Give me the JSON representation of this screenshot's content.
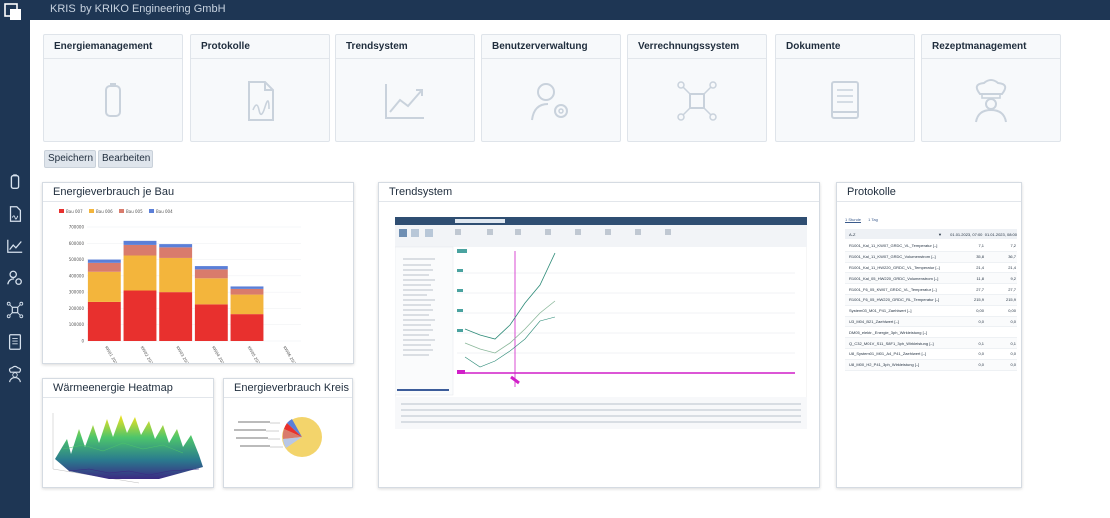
{
  "header": {
    "app_name": "KRIS",
    "company": "by KRIKO Engineering GmbH"
  },
  "sidebar": {
    "icons": [
      "battery-icon",
      "document-icon",
      "trend-icon",
      "user-gear-icon",
      "network-icon",
      "book-icon",
      "chef-icon"
    ]
  },
  "tiles": [
    {
      "label": "Energiemanagement",
      "icon": "battery-icon"
    },
    {
      "label": "Protokolle",
      "icon": "document-icon"
    },
    {
      "label": "Trendsystem",
      "icon": "trend-icon"
    },
    {
      "label": "Benutzerverwaltung",
      "icon": "user-gear-icon"
    },
    {
      "label": "Verrechnungssystem",
      "icon": "network-icon"
    },
    {
      "label": "Dokumente",
      "icon": "book-icon"
    },
    {
      "label": "Rezeptmanagement",
      "icon": "chef-icon"
    }
  ],
  "buttons": {
    "save": "Speichern",
    "edit": "Bearbeiten"
  },
  "panels": {
    "energy_bar": "Energieverbrauch je Bau",
    "heatmap": "Wärmeenergie Heatmap",
    "pie": "Energieverbrauch Kreis",
    "trend": "Trendsystem",
    "protocols": "Protokolle"
  },
  "colors": {
    "bau007": "#e8302e",
    "bau006": "#f3b53c",
    "bau005": "#d97b6c",
    "bau004": "#5b7fd8"
  },
  "chart_data": [
    {
      "type": "bar",
      "title": "Energieverbrauch je Bau",
      "legend": [
        "Bau 007",
        "Bau 006",
        "Bau 005",
        "Bau 004"
      ],
      "categories": [
        "KW01 2024",
        "KW02 2024",
        "KW03 2024",
        "KW04 2024",
        "KW05 2024",
        "KW06 2024"
      ],
      "series": [
        {
          "name": "Bau 007",
          "values": [
            240000,
            310000,
            300000,
            225000,
            165000,
            0
          ]
        },
        {
          "name": "Bau 006",
          "values": [
            185000,
            215000,
            210000,
            160000,
            120000,
            0
          ]
        },
        {
          "name": "Bau 005",
          "values": [
            55000,
            65000,
            65000,
            55000,
            35000,
            0
          ]
        },
        {
          "name": "Bau 004",
          "values": [
            20000,
            25000,
            20000,
            20000,
            15000,
            0
          ]
        }
      ],
      "yticks": [
        "0",
        "100000",
        "200000",
        "300000",
        "400000",
        "500000",
        "600000",
        "700000"
      ],
      "ylim": [
        0,
        700000
      ],
      "legend_position": "top-left"
    }
  ],
  "protocols": {
    "tabs": [
      "1 Stunde",
      "1 Tag"
    ],
    "column_header": "A-Z",
    "dates": [
      "01.01.2023, 07:00",
      "01.01.2023, 08:00"
    ],
    "rows": [
      {
        "name": "R1001_Kal_11_KW07_GRDC_VL_Temperatur [–]",
        "v1": "7,1",
        "v2": "7,2"
      },
      {
        "name": "R1001_Kal_11_KW07_GRDC_Volumenstrom [–]",
        "v1": "35,8",
        "v2": "36,7"
      },
      {
        "name": "R1001_Kal_11_HW220_GRDC_VL_Temperatur [–]",
        "v1": "21,4",
        "v2": "21,4"
      },
      {
        "name": "R1001_Kal_05_HW220_GRDC_Volumenstrom [–]",
        "v1": "11,8",
        "v2": "9,2"
      },
      {
        "name": "R1001_F6_05_KW07_GRDC_VL_Temperatur [–]",
        "v1": "27,7",
        "v2": "27,7"
      },
      {
        "name": "R1001_F6_05_HW220_GRDC_RL_Temperatur [–]",
        "v1": "215,9",
        "v2": "215,9"
      },
      {
        "name": "System03_M01_P41_Zaehlwert [–]",
        "v1": "0,00",
        "v2": "0,00"
      },
      {
        "name": "U3_M04_B21_Zaehlwert [–]",
        "v1": "0,0",
        "v2": "0,0"
      },
      {
        "name": "DM05_elektr._Energie_3ph_Wirkleistung [–]",
        "v1": "",
        "v2": ""
      },
      {
        "name": "Q_C32_M01V_S11_S8F1_3ph_Wirkleistung [–]",
        "v1": "0,1",
        "v2": "0,1"
      },
      {
        "name": "U8_System01_M01_A4_P41_Zaehlwert [–]",
        "v1": "0,0",
        "v2": "0,0"
      },
      {
        "name": "U8_M00_H2_P41_3ph_Wirkleistung [–]",
        "v1": "0,0",
        "v2": "0,0"
      }
    ]
  }
}
